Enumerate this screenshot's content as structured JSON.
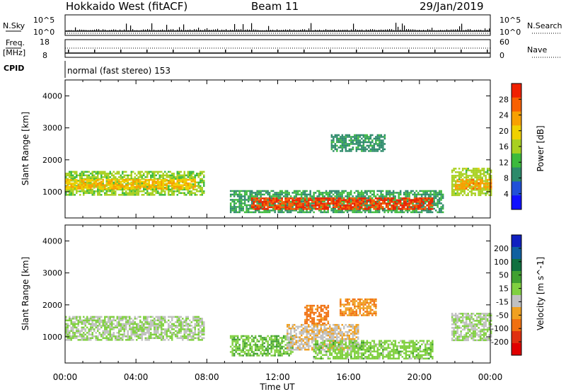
{
  "header": {
    "title": "Hokkaido West (fitACF)",
    "beam": "Beam 11",
    "date": "29/Jan/2019"
  },
  "top_panels": {
    "nsky_label": "N.Sky",
    "nsearch_label": "N.Search",
    "freq_label_1": "Freq.",
    "freq_label_2": "[MHz]",
    "nave_label": "Nave",
    "cpid_label": "CPID",
    "left_ticks_counts": [
      "10^5",
      "10^0"
    ],
    "right_ticks_counts": [
      "10^5",
      "10^0"
    ],
    "left_ticks_freq": [
      "18",
      "8"
    ],
    "right_ticks_freq": [
      "60",
      "0"
    ],
    "cpid_text": "normal (fast stereo) 153"
  },
  "chart_data": [
    {
      "type": "heatmap",
      "name": "power",
      "ylabel": "Slant Range [km]",
      "yticks": [
        "4000",
        "3000",
        "2000",
        "1000"
      ],
      "ylim": [
        180,
        4500
      ],
      "colorbar_label": "Power [dB]",
      "colorbar_ticks": [
        "28",
        "24",
        "20",
        "16",
        "12",
        "8",
        "4"
      ],
      "colorbar_range": [
        0,
        30
      ],
      "colors": [
        "#1010ff",
        "#2050d8",
        "#2c8a6a",
        "#3cba3c",
        "#a8d020",
        "#f0d000",
        "#f8a000",
        "#f86000",
        "#f02000"
      ],
      "regions": [
        {
          "x": [
            0.0,
            7.8
          ],
          "y": [
            900,
            1650
          ],
          "value": 14
        },
        {
          "x": [
            0.0,
            7.3
          ],
          "y": [
            1100,
            1400
          ],
          "value": 20
        },
        {
          "x": [
            9.3,
            21.3
          ],
          "y": [
            380,
            1050
          ],
          "value": 10
        },
        {
          "x": [
            10.5,
            20.7
          ],
          "y": [
            450,
            820
          ],
          "value": 27
        },
        {
          "x": [
            15.0,
            18.0
          ],
          "y": [
            2300,
            2800
          ],
          "value": 9
        },
        {
          "x": [
            21.8,
            24.0
          ],
          "y": [
            900,
            1750
          ],
          "value": 15
        },
        {
          "x": [
            22.0,
            24.0
          ],
          "y": [
            1100,
            1400
          ],
          "value": 22
        }
      ]
    },
    {
      "type": "heatmap",
      "name": "velocity",
      "xlabel": "Time UT",
      "ylabel": "Slant Range [km]",
      "xticks": [
        "00:00",
        "04:00",
        "08:00",
        "12:00",
        "16:00",
        "20:00",
        "00:00"
      ],
      "yticks": [
        "4000",
        "3000",
        "2000",
        "1000"
      ],
      "ylim": [
        180,
        4500
      ],
      "colorbar_label": "Velocity [m s^-1]",
      "colorbar_ticks": [
        "200",
        "100",
        "50",
        "15",
        "-15",
        "-50",
        "-100",
        "-200"
      ],
      "colorbar_range": [
        -250,
        250
      ],
      "colors": [
        "#1020c0",
        "#1060a0",
        "#107040",
        "#40a030",
        "#80d040",
        "#c0c0c0",
        "#f0a020",
        "#f07010",
        "#e03010",
        "#e00000"
      ],
      "regions": [
        {
          "x": [
            0.0,
            7.8
          ],
          "y": [
            900,
            1650
          ],
          "value": 0
        },
        {
          "x": [
            9.3,
            12.8
          ],
          "y": [
            400,
            1050
          ],
          "value": 40
        },
        {
          "x": [
            12.5,
            16.5
          ],
          "y": [
            600,
            1400
          ],
          "value": -40
        },
        {
          "x": [
            14.0,
            20.7
          ],
          "y": [
            300,
            900
          ],
          "value": 25
        },
        {
          "x": [
            13.5,
            14.8
          ],
          "y": [
            1400,
            2000
          ],
          "value": -120
        },
        {
          "x": [
            15.5,
            17.5
          ],
          "y": [
            1700,
            2200
          ],
          "value": -90
        },
        {
          "x": [
            21.8,
            24.0
          ],
          "y": [
            900,
            1750
          ],
          "value": 0
        }
      ]
    }
  ]
}
